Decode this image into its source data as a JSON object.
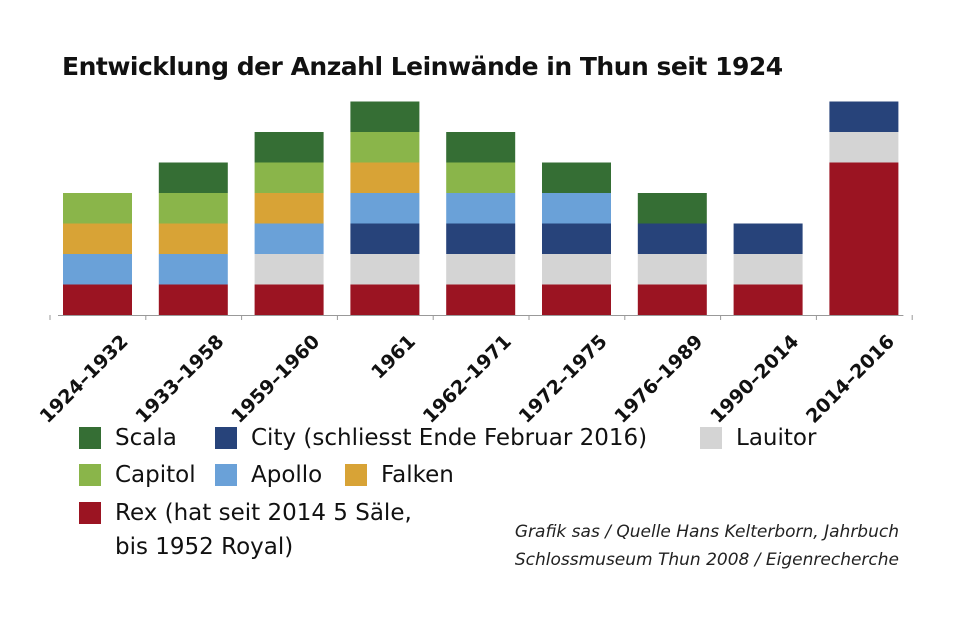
{
  "chart_data": {
    "type": "bar",
    "stacked": true,
    "title": "Entwicklung der Anzahl Leinwände in Thun seit 1924",
    "categories": [
      "1924–1932",
      "1933–1958",
      "1959–1960",
      "1961",
      "1962–1971",
      "1972–1975",
      "1976–1989",
      "1990–2014",
      "2014–2016"
    ],
    "series": [
      {
        "name": "Rex (hat seit 2014 5 Säle, bis 1952 Royal)",
        "key": "rex",
        "color": "#9b1422",
        "values": [
          1,
          1,
          1,
          1,
          1,
          1,
          1,
          1,
          5
        ]
      },
      {
        "name": "Lauitor",
        "key": "lauitor",
        "color": "#d4d4d4",
        "values": [
          0,
          0,
          1,
          1,
          1,
          1,
          1,
          1,
          1
        ]
      },
      {
        "name": "City (schliesst Ende Februar 2016)",
        "key": "city",
        "color": "#27437a",
        "values": [
          0,
          0,
          0,
          1,
          1,
          1,
          1,
          1,
          1
        ]
      },
      {
        "name": "Apollo",
        "key": "apollo",
        "color": "#6aa1d8",
        "values": [
          1,
          1,
          1,
          1,
          1,
          1,
          0,
          0,
          0
        ]
      },
      {
        "name": "Falken",
        "key": "falken",
        "color": "#d8a336",
        "values": [
          1,
          1,
          1,
          1,
          0,
          0,
          0,
          0,
          0
        ]
      },
      {
        "name": "Capitol",
        "key": "capitol",
        "color": "#8ab54a",
        "values": [
          1,
          1,
          1,
          1,
          1,
          0,
          0,
          0,
          0
        ]
      },
      {
        "name": "Scala",
        "key": "scala",
        "color": "#356e34",
        "values": [
          0,
          1,
          1,
          1,
          1,
          1,
          1,
          0,
          0
        ]
      }
    ],
    "ylim": [
      0,
      7
    ],
    "grid": false,
    "legend_placement": "bottom"
  },
  "legend": {
    "scala": "Scala",
    "city": "City (schliesst Ende Februar 2016)",
    "lauitor": "Lauitor",
    "capitol": "Capitol",
    "apollo": "Apollo",
    "falken": "Falken",
    "rex_line1": "Rex (hat seit 2014 5 Säle,",
    "rex_line2": "bis 1952 Royal)"
  },
  "source": {
    "line1": "Grafik sas / Quelle Hans Kelterborn, Jahrbuch",
    "line2": "Schlossmuseum Thun 2008 / Eigenrecherche"
  }
}
